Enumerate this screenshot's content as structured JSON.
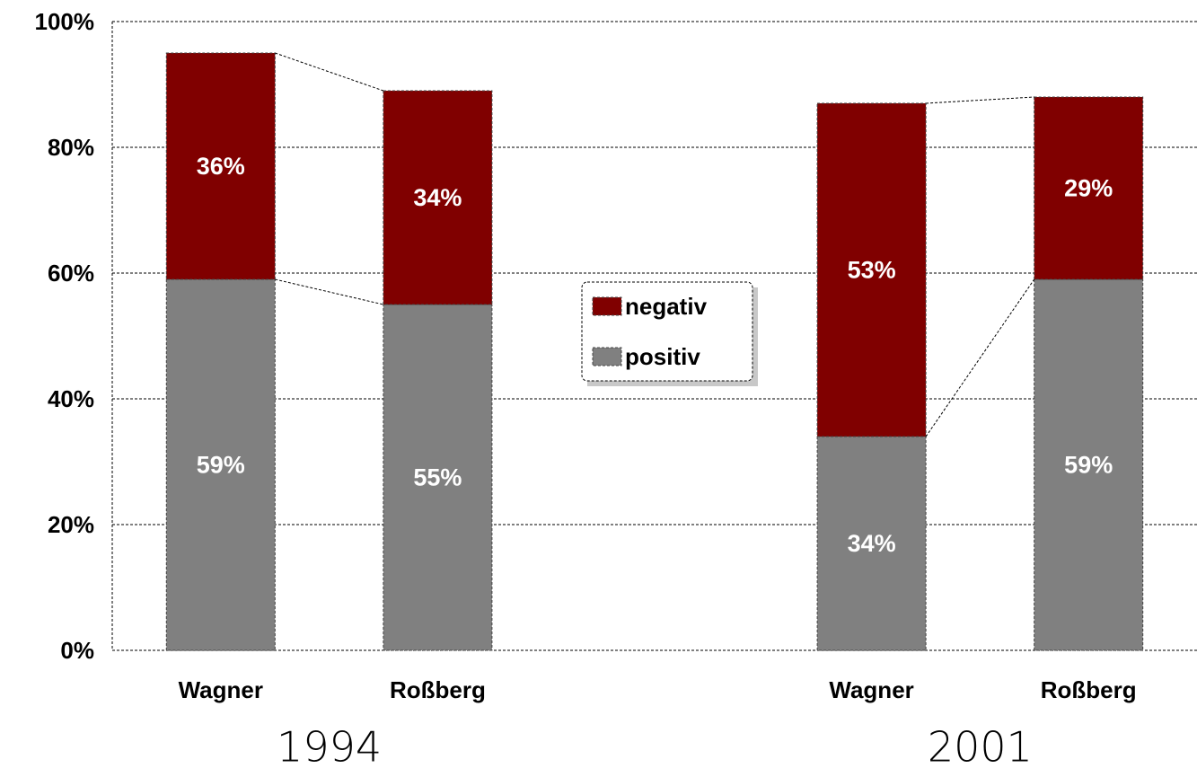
{
  "chart_data": {
    "type": "stacked_bar",
    "categories": [
      "Wagner",
      "Roßberg",
      null,
      "Wagner",
      "Roßberg"
    ],
    "group_labels": [
      "1994",
      "2001"
    ],
    "series": [
      {
        "name": "positiv",
        "color": "#808080",
        "values": [
          59,
          55,
          null,
          34,
          59
        ],
        "value_labels": [
          "59%",
          "55%",
          null,
          "34%",
          "59%"
        ]
      },
      {
        "name": "negativ",
        "color": "#800000",
        "values": [
          36,
          34,
          null,
          53,
          29
        ],
        "value_labels": [
          "36%",
          "34%",
          null,
          "53%",
          "29%"
        ]
      }
    ],
    "ylim": [
      0,
      100
    ],
    "yticks": [
      {
        "value": 0,
        "label": "0%"
      },
      {
        "value": 20,
        "label": "20%"
      },
      {
        "value": 40,
        "label": "40%"
      },
      {
        "value": 60,
        "label": "60%"
      },
      {
        "value": 80,
        "label": "80%"
      },
      {
        "value": 100,
        "label": "100%"
      }
    ],
    "grid": true,
    "legend": "center"
  }
}
